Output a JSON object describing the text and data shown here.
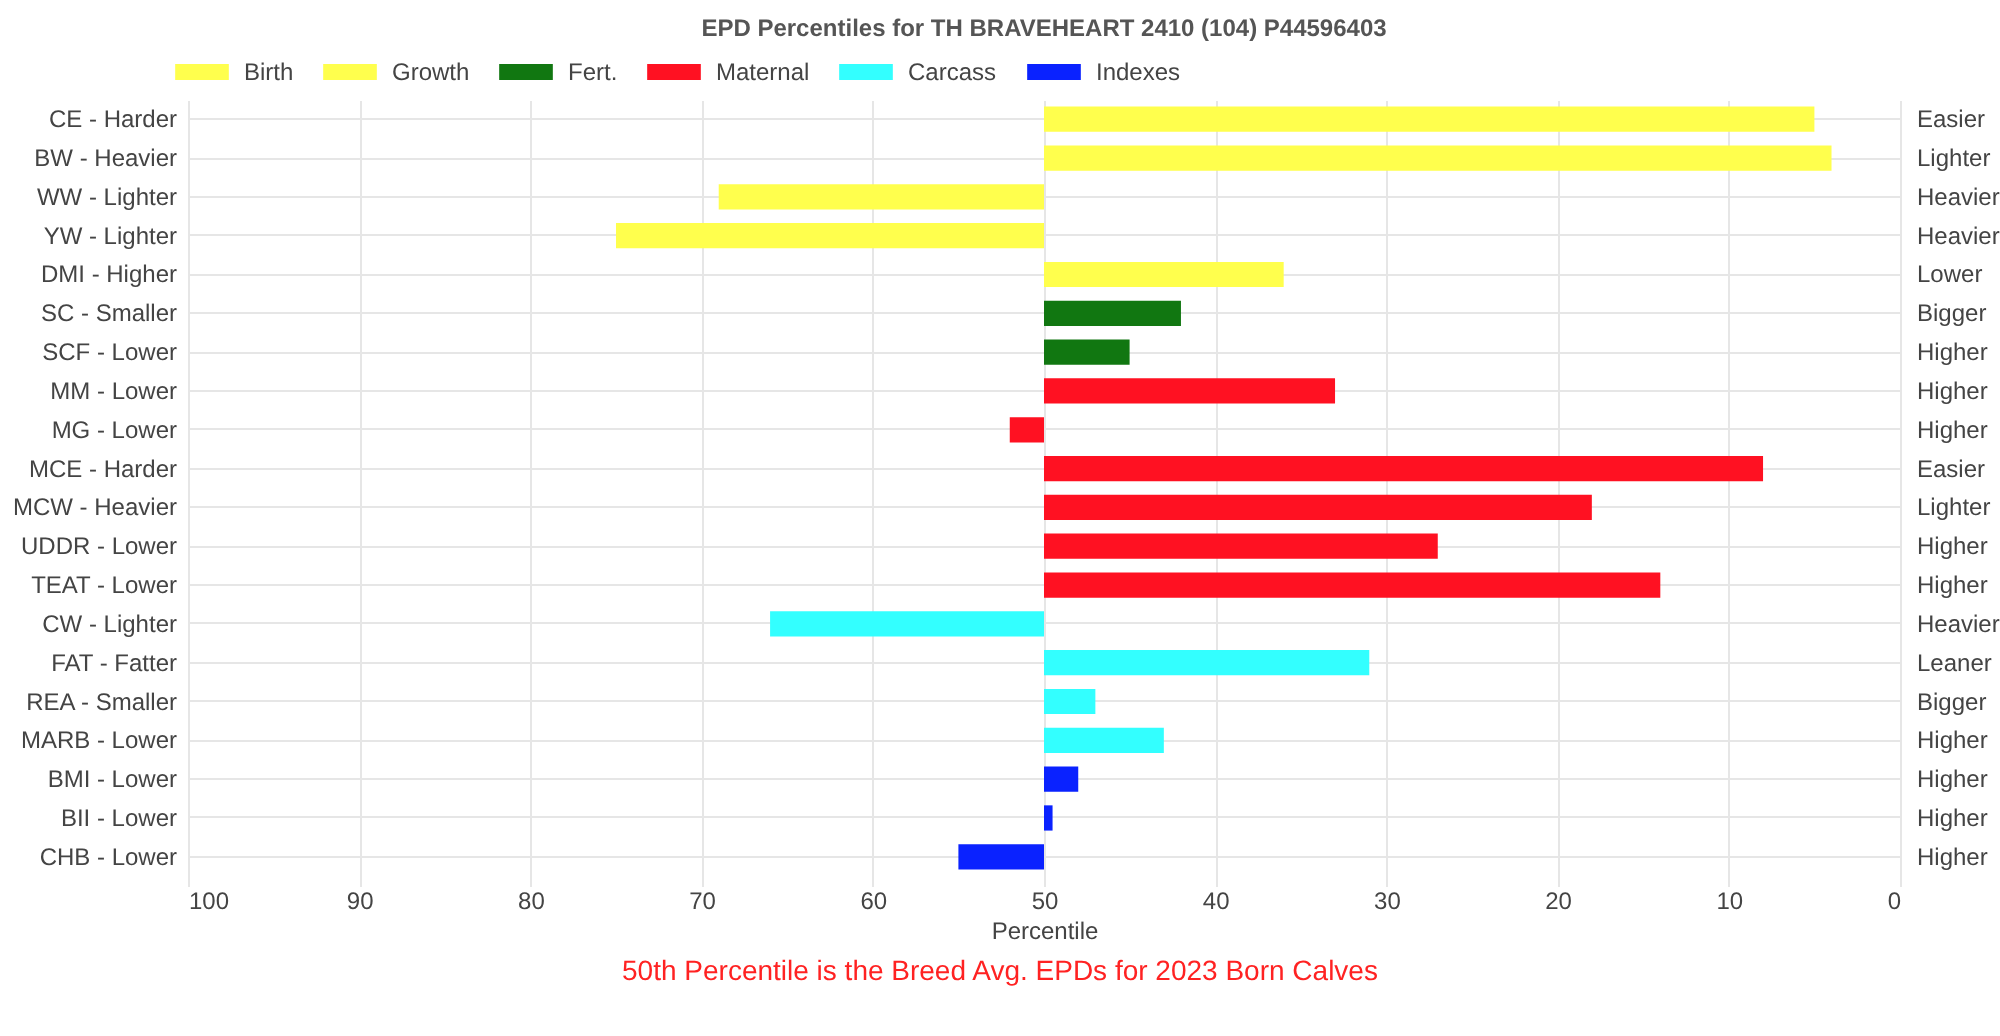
{
  "chart_data": {
    "type": "bar",
    "orientation": "horizontal",
    "title": "EPD Percentiles for TH BRAVEHEART 2410 (104) P44596403",
    "xlabel": "Percentile",
    "categories": [
      "CE - Harder",
      "BW - Heavier",
      "WW - Lighter",
      "YW - Lighter",
      "DMI - Higher",
      "SC - Smaller",
      "SCF - Lower",
      "MM - Lower",
      "MG - Lower",
      "MCE - Harder",
      "MCW - Heavier",
      "UDDR - Lower",
      "TEAT - Lower",
      "CW - Lighter",
      "FAT - Fatter",
      "REA - Smaller",
      "MARB - Lower",
      "BMI - Lower",
      "BII - Lower",
      "CHB - Lower"
    ],
    "y2_categories": [
      "Easier",
      "Lighter",
      "Heavier",
      "Heavier",
      "Lower",
      "Bigger",
      "Higher",
      "Higher",
      "Higher",
      "Easier",
      "Lighter",
      "Higher",
      "Higher",
      "Heavier",
      "Leaner",
      "Bigger",
      "Higher",
      "Higher",
      "Higher",
      "Higher"
    ],
    "series": [
      {
        "name": "Birth",
        "color": "#ffff4d",
        "base": [
          50,
          50,
          null,
          null,
          null,
          null,
          null,
          null,
          null,
          null,
          null,
          null,
          null,
          null,
          null,
          null,
          null,
          null,
          null,
          null
        ],
        "values": [
          -45,
          -46,
          null,
          null,
          null,
          null,
          null,
          null,
          null,
          null,
          null,
          null,
          null,
          null,
          null,
          null,
          null,
          null,
          null,
          null
        ]
      },
      {
        "name": "Growth",
        "color": "#ffff4d",
        "base": [
          null,
          null,
          50,
          50,
          50,
          null,
          null,
          null,
          null,
          null,
          null,
          null,
          null,
          null,
          null,
          null,
          null,
          null,
          null,
          null
        ],
        "values": [
          null,
          null,
          19,
          25,
          -14,
          null,
          null,
          null,
          null,
          null,
          null,
          null,
          null,
          null,
          null,
          null,
          null,
          null,
          null,
          null
        ]
      },
      {
        "name": "Fert.",
        "color": "#117711",
        "base": [
          null,
          null,
          null,
          null,
          null,
          50,
          50,
          null,
          null,
          null,
          null,
          null,
          null,
          null,
          null,
          null,
          null,
          null,
          null,
          null
        ],
        "values": [
          null,
          null,
          null,
          null,
          null,
          -8,
          -5,
          null,
          null,
          null,
          null,
          null,
          null,
          null,
          null,
          null,
          null,
          null,
          null,
          null
        ]
      },
      {
        "name": "Maternal",
        "color": "#ff1122",
        "base": [
          null,
          null,
          null,
          null,
          null,
          null,
          null,
          50,
          50,
          50,
          50,
          50,
          50,
          null,
          null,
          null,
          null,
          null,
          null,
          null
        ],
        "values": [
          null,
          null,
          null,
          null,
          null,
          null,
          null,
          -17,
          2,
          -42,
          -32,
          -23,
          -36,
          null,
          null,
          null,
          null,
          null,
          null,
          null
        ]
      },
      {
        "name": "Carcass",
        "color": "#33ffff",
        "base": [
          null,
          null,
          null,
          null,
          null,
          null,
          null,
          null,
          null,
          null,
          null,
          null,
          null,
          50,
          50,
          50,
          50,
          null,
          null,
          null
        ],
        "values": [
          null,
          null,
          null,
          null,
          null,
          null,
          null,
          null,
          null,
          null,
          null,
          null,
          null,
          16,
          -19,
          -3,
          -7,
          null,
          null,
          null
        ]
      },
      {
        "name": "Indexes",
        "color": "#0a22ff",
        "base": [
          null,
          null,
          null,
          null,
          null,
          null,
          null,
          null,
          null,
          null,
          null,
          null,
          null,
          null,
          null,
          null,
          null,
          50,
          50,
          50
        ],
        "values": [
          null,
          null,
          null,
          null,
          null,
          null,
          null,
          null,
          null,
          null,
          null,
          null,
          null,
          null,
          null,
          null,
          null,
          -2,
          -0.5,
          5
        ]
      }
    ],
    "xlim": [
      100,
      0
    ],
    "xticks": [
      100,
      90,
      80,
      70,
      60,
      50,
      40,
      30,
      20,
      10,
      0
    ],
    "grid": true,
    "legend": "top",
    "annotations": [
      "50th Percentile is the Breed Avg. EPDs for 2023 Born Calves"
    ]
  }
}
